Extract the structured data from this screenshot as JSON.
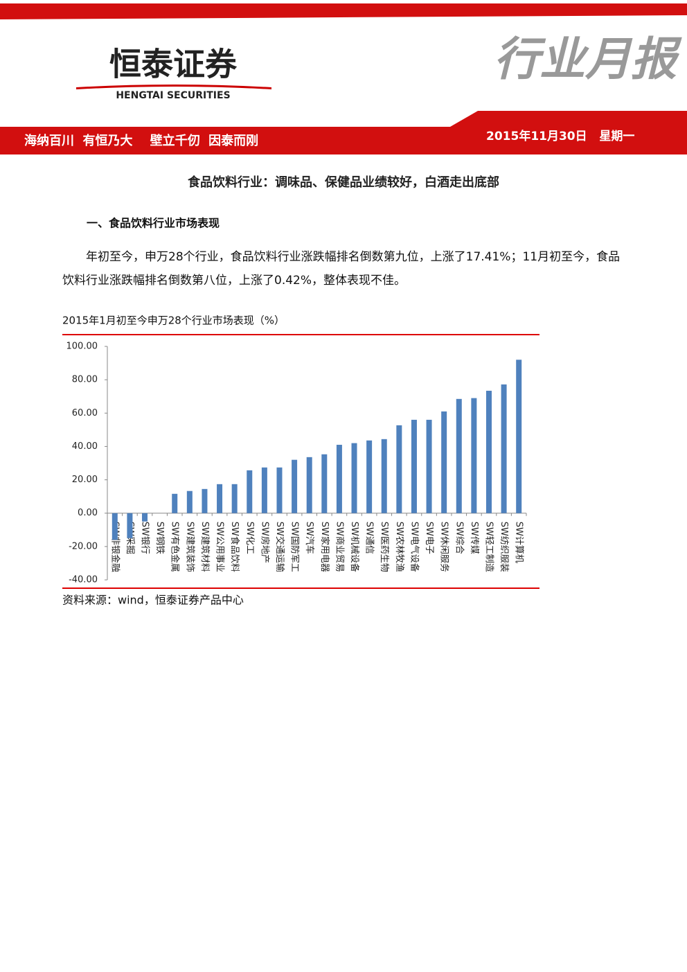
{
  "header": {
    "company": "恒泰证券",
    "company_en": "HENGTAI SECURITIES",
    "report_type": "行业月报",
    "slogan": "海纳百川  有恒乃大    壁立千仞  因泰而刚",
    "date": "2015年11月30日   星期一"
  },
  "title": "食品饮料行业：调味品、保健品业绩较好，白酒走出底部",
  "section_heading": "一、食品饮料行业市场表现",
  "paragraph": "年初至今，申万28个行业，食品饮料行业涨跌幅排名倒数第九位，上涨了17.41%；11月初至今，食品饮料行业涨跌幅排名倒数第八位，上涨了0.42%，整体表现不佳。",
  "chart_data": {
    "type": "bar",
    "title": "2015年1月初至今申万28个行业市场表现（%）",
    "color": "#4f81bd",
    "categories": [
      "SW非银金融",
      "SW采掘",
      "SW银行",
      "SW钢铁",
      "SW有色金属",
      "SW建筑装饰",
      "SW建筑材料",
      "SW公用事业",
      "SW食品饮料",
      "SW化工",
      "SW房地产",
      "SW交通运输",
      "SW国防军工",
      "SW汽车",
      "SW家用电器",
      "SW商业贸易",
      "SW机械设备",
      "SW通信",
      "SW医药生物",
      "SW农林牧渔",
      "SW电气设备",
      "SW电子",
      "SW休闲服务",
      "SW综合",
      "SW传媒",
      "SW轻工制造",
      "SW纺织服装",
      "SW计算机"
    ],
    "values": [
      -16,
      -15,
      -5,
      0,
      11.6,
      13.3,
      14.5,
      17.4,
      17.41,
      25.7,
      27.4,
      27.4,
      32,
      33.6,
      35.3,
      41,
      42,
      43.6,
      44.4,
      52.7,
      56,
      56,
      61,
      68.5,
      69,
      73.4,
      77.2,
      92
    ],
    "ylim": [
      -40,
      100
    ],
    "yticks": [
      {
        "value": -40,
        "label": "-40.00"
      },
      {
        "value": -20,
        "label": "-20.00"
      },
      {
        "value": 0,
        "label": "0.00"
      },
      {
        "value": 20,
        "label": "20.00"
      },
      {
        "value": 40,
        "label": "40.00"
      },
      {
        "value": 60,
        "label": "60.00"
      },
      {
        "value": 80,
        "label": "80.00"
      },
      {
        "value": 100,
        "label": "100.00"
      }
    ],
    "grid": false
  },
  "source": "资料来源：wind，恒泰证券产品中心"
}
